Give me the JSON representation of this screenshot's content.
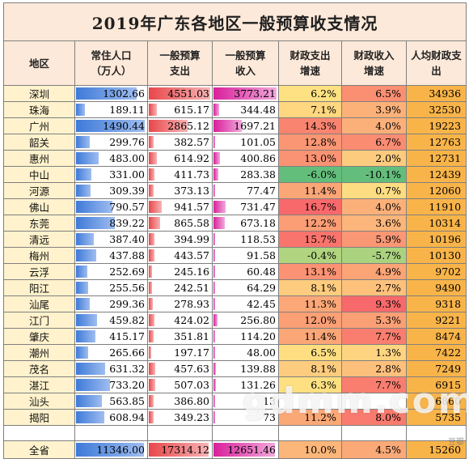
{
  "title": "2019年广东各地区一般预算收支情况",
  "headers": {
    "region": "地区",
    "population": [
      "常住人口",
      "（万人）"
    ],
    "expenditure": [
      "一般预算",
      "支出"
    ],
    "revenue": [
      "一般预算",
      "收入"
    ],
    "exp_growth": [
      "财政支出",
      "增速"
    ],
    "rev_growth": [
      "财政收入",
      "增速"
    ],
    "per_capita": [
      "人均财政支",
      "出"
    ]
  },
  "rows": [
    {
      "region": "深圳",
      "population": "1302.66",
      "expenditure": "4551.03",
      "revenue": "3773.21",
      "exp_growth": "6.2%",
      "rev_growth": "6.5%",
      "per_capita": "34936"
    },
    {
      "region": "珠海",
      "population": "189.11",
      "expenditure": "615.17",
      "revenue": "344.48",
      "exp_growth": "7.1%",
      "rev_growth": "3.9%",
      "per_capita": "32530"
    },
    {
      "region": "广州",
      "population": "1490.44",
      "expenditure": "2865.12",
      "revenue": "1697.21",
      "exp_growth": "14.3%",
      "rev_growth": "4.0%",
      "per_capita": "19223"
    },
    {
      "region": "韶关",
      "population": "299.76",
      "expenditure": "382.57",
      "revenue": "101.05",
      "exp_growth": "12.8%",
      "rev_growth": "6.7%",
      "per_capita": "12763"
    },
    {
      "region": "惠州",
      "population": "483.00",
      "expenditure": "614.92",
      "revenue": "400.86",
      "exp_growth": "13.0%",
      "rev_growth": "2.0%",
      "per_capita": "12731"
    },
    {
      "region": "中山",
      "population": "331.00",
      "expenditure": "411.73",
      "revenue": "283.38",
      "exp_growth": "-6.0%",
      "rev_growth": "-10.1%",
      "per_capita": "12439"
    },
    {
      "region": "河源",
      "population": "309.39",
      "expenditure": "373.13",
      "revenue": "77.47",
      "exp_growth": "11.4%",
      "rev_growth": "0.7%",
      "per_capita": "12060"
    },
    {
      "region": "佛山",
      "population": "790.57",
      "expenditure": "941.57",
      "revenue": "731.47",
      "exp_growth": "16.7%",
      "rev_growth": "4.0%",
      "per_capita": "11910"
    },
    {
      "region": "东莞",
      "population": "839.22",
      "expenditure": "865.58",
      "revenue": "673.18",
      "exp_growth": "12.2%",
      "rev_growth": "3.6%",
      "per_capita": "10314"
    },
    {
      "region": "清远",
      "population": "387.40",
      "expenditure": "394.99",
      "revenue": "118.53",
      "exp_growth": "15.7%",
      "rev_growth": "5.9%",
      "per_capita": "10196"
    },
    {
      "region": "梅州",
      "population": "437.88",
      "expenditure": "443.57",
      "revenue": "91.58",
      "exp_growth": "-0.4%",
      "rev_growth": "-5.7%",
      "per_capita": "10130"
    },
    {
      "region": "云浮",
      "population": "252.69",
      "expenditure": "245.16",
      "revenue": "60.48",
      "exp_growth": "13.1%",
      "rev_growth": "4.9%",
      "per_capita": "9702"
    },
    {
      "region": "阳江",
      "population": "255.56",
      "expenditure": "242.51",
      "revenue": "64.29",
      "exp_growth": "8.1%",
      "rev_growth": "2.7%",
      "per_capita": "9490"
    },
    {
      "region": "汕尾",
      "population": "299.36",
      "expenditure": "278.93",
      "revenue": "42.45",
      "exp_growth": "11.3%",
      "rev_growth": "9.3%",
      "per_capita": "9318"
    },
    {
      "region": "江门",
      "population": "459.82",
      "expenditure": "424.02",
      "revenue": "256.80",
      "exp_growth": "12.0%",
      "rev_growth": "5.3%",
      "per_capita": "9221"
    },
    {
      "region": "肇庆",
      "population": "415.17",
      "expenditure": "351.81",
      "revenue": "114.20",
      "exp_growth": "11.4%",
      "rev_growth": "7.7%",
      "per_capita": "8474"
    },
    {
      "region": "潮州",
      "population": "265.66",
      "expenditure": "197.17",
      "revenue": "48.00",
      "exp_growth": "6.5%",
      "rev_growth": "1.3%",
      "per_capita": "7422"
    },
    {
      "region": "茂名",
      "population": "631.32",
      "expenditure": "457.63",
      "revenue": "139.88",
      "exp_growth": "8.1%",
      "rev_growth": "2.8%",
      "per_capita": "7249"
    },
    {
      "region": "湛江",
      "population": "733.20",
      "expenditure": "507.03",
      "revenue": "131.26",
      "exp_growth": "6.3%",
      "rev_growth": "7.7%",
      "per_capita": "6915"
    },
    {
      "region": "汕头",
      "population": "563.85",
      "expenditure": "386.80",
      "revenue": "13",
      "exp_growth": "",
      "rev_growth": "",
      "per_capita": "6860"
    },
    {
      "region": "揭阳",
      "population": "608.94",
      "expenditure": "349.23",
      "revenue": "73",
      "exp_growth": "11.2%",
      "rev_growth": "8.0%",
      "per_capita": "5735"
    }
  ],
  "total": {
    "region": "全省",
    "population": "11346.00",
    "expenditure": "17314.12",
    "revenue": "12651.46",
    "exp_growth": "10.0%",
    "rev_growth": "4.5%",
    "per_capita": "15260"
  },
  "watermark": "gdmm.com",
  "corner_mark": "豆瓣",
  "colors": {
    "title_bg": "#fde9d9",
    "region_bg": "#fff2cc",
    "per_capita_bg": "#f9b449",
    "pop_bar": "#3e7ad8",
    "exp_bar": "#e8474a",
    "rev_bar": "#d91f9b"
  }
}
